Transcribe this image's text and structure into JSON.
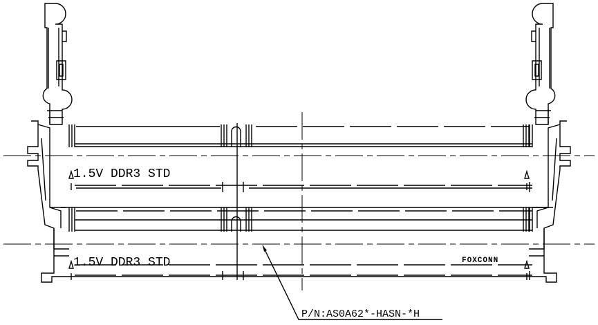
{
  "labels": {
    "slot_1": "1.5V DDR3 STD",
    "slot_2": "1.5V DDR3 STD",
    "brand": "FOXCONN",
    "part_number": "P/N:AS0A62*-HASN-*H"
  }
}
